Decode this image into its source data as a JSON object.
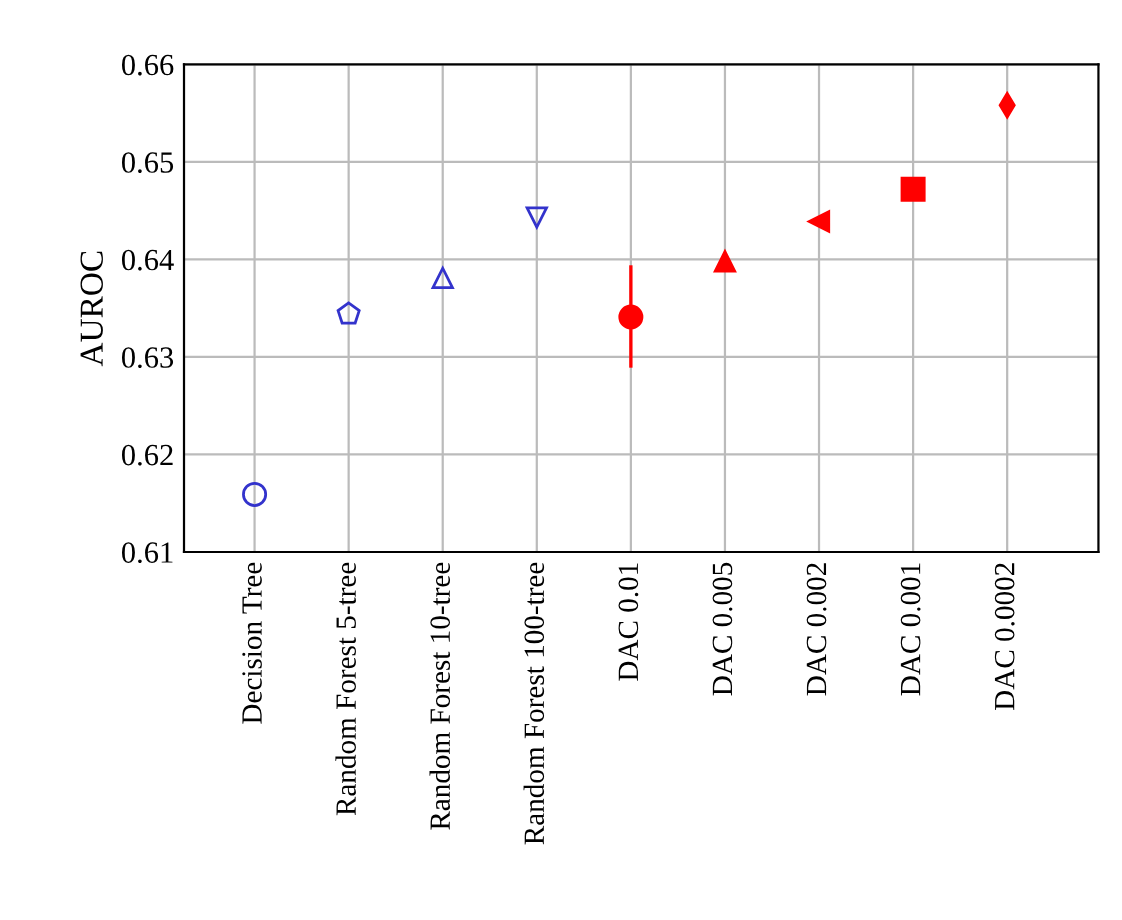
{
  "chart_data": {
    "type": "scatter",
    "ylabel": "AUROC",
    "categories": [
      "Decision Tree",
      "Random Forest 5-tree",
      "Random Forest 10-tree",
      "Random Forest 100-tree",
      "DAC 0.01",
      "DAC 0.005",
      "DAC 0.002",
      "DAC 0.001",
      "DAC 0.0002"
    ],
    "series": [
      {
        "color": "#3333cc",
        "marker": "circle",
        "values": [
          0.6159,
          null,
          null,
          null,
          null,
          null,
          null,
          null,
          null
        ]
      },
      {
        "color": "#3333cc",
        "values": [
          null,
          0.6344,
          null,
          null,
          null,
          null,
          null,
          null,
          null
        ]
      },
      {
        "color": "#3333cc",
        "marker": "triangle",
        "values": [
          null,
          null,
          0.6381,
          null,
          null,
          null,
          null,
          null,
          null
        ]
      },
      {
        "color": "#3333cc",
        "marker": "triangle_down",
        "values": [
          null,
          null,
          null,
          0.6443,
          null,
          null,
          null,
          null,
          null
        ]
      },
      {
        "color": "#ff0000",
        "marker": "circle",
        "values": [
          null,
          null,
          null,
          null,
          0.6341,
          null,
          null,
          null,
          null
        ],
        "errors": [
          null,
          null,
          null,
          null,
          [
            0.6289,
            0.6394
          ],
          null,
          null,
          null,
          null
        ]
      },
      {
        "color": "#ff0000",
        "marker": "triangle",
        "values": [
          null,
          null,
          null,
          null,
          null,
          0.6398,
          null,
          null,
          null
        ]
      },
      {
        "color": "#ff0000",
        "marker": "triangle_left",
        "values": [
          null,
          null,
          null,
          null,
          null,
          null,
          0.6439,
          null,
          null
        ]
      },
      {
        "color": "#ff0000",
        "marker": "square",
        "values": [
          null,
          null,
          null,
          null,
          null,
          null,
          null,
          0.6472,
          null
        ]
      },
      {
        "color": "#ff0000",
        "marker": "diamond",
        "values": [
          null,
          null,
          null,
          null,
          null,
          null,
          null,
          null,
          0.6558
        ]
      }
    ],
    "ylim": [
      0.61,
      0.66
    ],
    "yticks": [
      0.61,
      0.62,
      0.63,
      0.64,
      0.65,
      0.66
    ],
    "grid": true
  }
}
